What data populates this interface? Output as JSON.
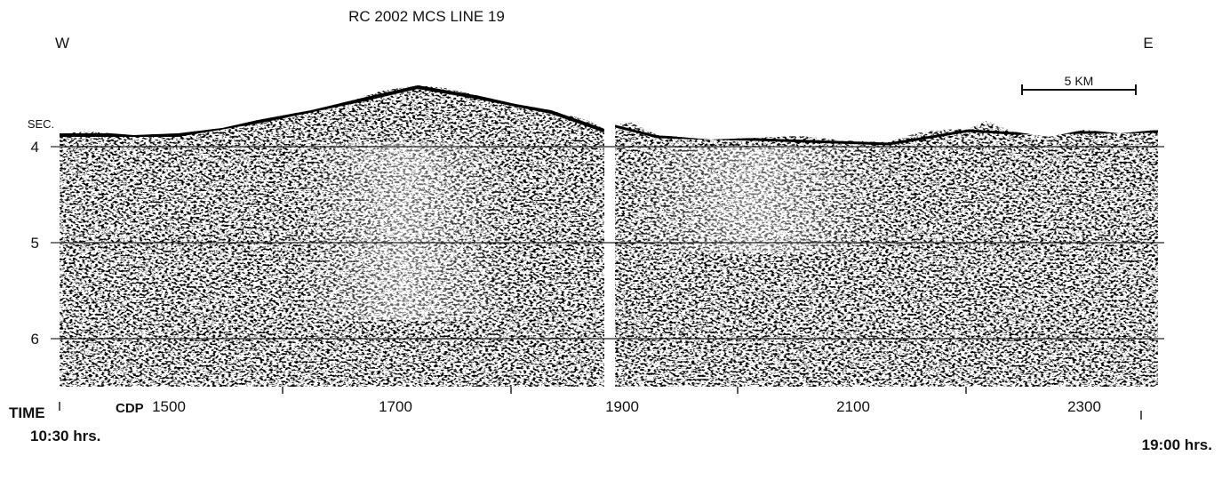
{
  "title": "RC 2002 MCS LINE 19",
  "directions": {
    "west": "W",
    "east": "E"
  },
  "scale_bar": "5 KM",
  "y_axis": {
    "label": "SEC.",
    "ticks": [
      "4",
      "5",
      "6"
    ]
  },
  "x_axis": {
    "prefix": "CDP",
    "ticks": [
      "1500",
      "1700",
      "1900",
      "2100",
      "2300"
    ]
  },
  "time": {
    "label": "TIME",
    "start": "10:30 hrs.",
    "end": "19:00 hrs."
  }
}
